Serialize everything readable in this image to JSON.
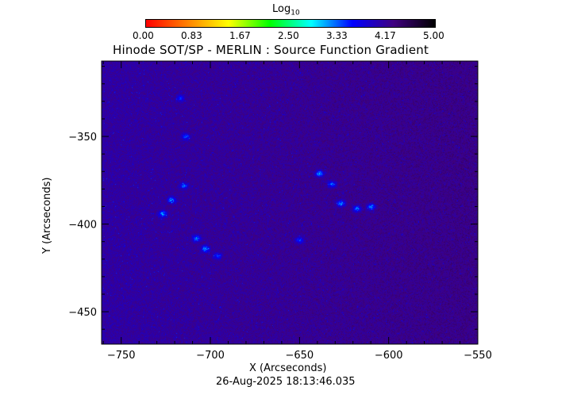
{
  "chart_data": {
    "type": "heatmap",
    "title": "Hinode SOT/SP - MERLIN : Source Function Gradient",
    "xlabel": "X (Arcseconds)",
    "ylabel": "Y (Arcseconds)",
    "xlim": [
      -761,
      -550
    ],
    "ylim": [
      -468.5,
      -307
    ],
    "xticks": [
      -750,
      -700,
      -650,
      -600,
      -550
    ],
    "xtick_labels": [
      "−750",
      "−700",
      "−650",
      "−600",
      "−550"
    ],
    "yticks": [
      -350,
      -400,
      -450
    ],
    "ytick_labels": [
      "−350",
      "−400",
      "−450"
    ],
    "colorbar": {
      "label": "Log",
      "label_sub": "10",
      "range": [
        0,
        5
      ],
      "tick_labels": [
        "0.00",
        "0.83",
        "1.67",
        "2.50",
        "3.33",
        "4.17",
        "5.00"
      ],
      "colormap": [
        "#ff0000",
        "#ff8000",
        "#ffff00",
        "#00ff00",
        "#00ffff",
        "#0000ff",
        "#400080",
        "#000000"
      ]
    },
    "background_value": 4.1,
    "bright_features": [
      {
        "x": -727,
        "y": -394,
        "value": 3.0
      },
      {
        "x": -722,
        "y": -386,
        "value": 3.1
      },
      {
        "x": -715,
        "y": -378,
        "value": 3.2
      },
      {
        "x": -708,
        "y": -408,
        "value": 3.1
      },
      {
        "x": -703,
        "y": -414,
        "value": 3.1
      },
      {
        "x": -696,
        "y": -418,
        "value": 3.3
      },
      {
        "x": -714,
        "y": -350,
        "value": 3.3
      },
      {
        "x": -717,
        "y": -328,
        "value": 3.4
      },
      {
        "x": -639,
        "y": -371,
        "value": 3.0
      },
      {
        "x": -632,
        "y": -377,
        "value": 3.1
      },
      {
        "x": -627,
        "y": -388,
        "value": 3.0
      },
      {
        "x": -618,
        "y": -391,
        "value": 3.1
      },
      {
        "x": -610,
        "y": -390,
        "value": 3.0
      },
      {
        "x": -650,
        "y": -409,
        "value": 3.3
      }
    ]
  },
  "footer": {
    "timestamp": "26-Aug-2025 18:13:46.035"
  }
}
